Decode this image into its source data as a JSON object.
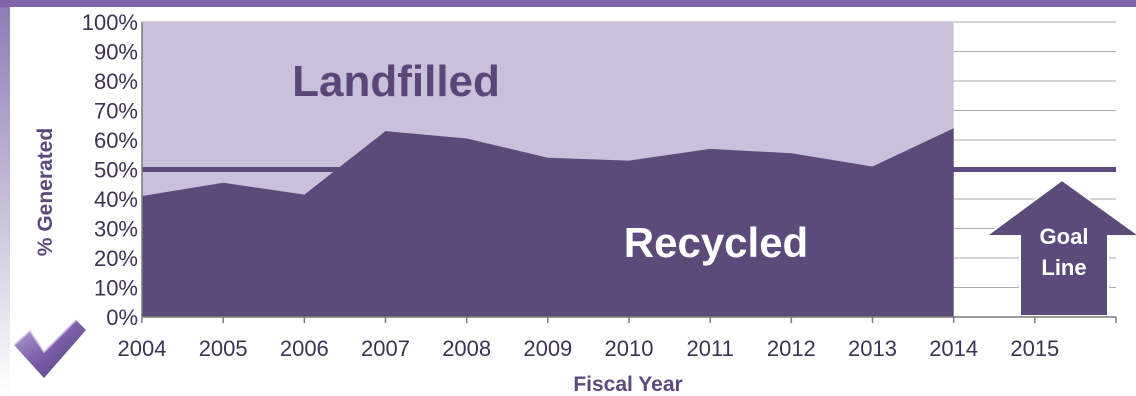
{
  "chart_data": {
    "type": "area",
    "title": "",
    "xlabel": "Fiscal Year",
    "ylabel": "% Generated",
    "x_ticks": [
      "2004",
      "2005",
      "2006",
      "2007",
      "2008",
      "2009",
      "2010",
      "2011",
      "2012",
      "2013",
      "2014",
      "2015"
    ],
    "y_ticks": [
      "0%",
      "10%",
      "20%",
      "30%",
      "40%",
      "50%",
      "60%",
      "70%",
      "80%",
      "90%",
      "100%"
    ],
    "xlim": [
      2004,
      2016
    ],
    "ylim": [
      0,
      100
    ],
    "grid": "horizontal",
    "series": [
      {
        "name": "Recycled",
        "x": [
          2004,
          2005,
          2006,
          2007,
          2008,
          2009,
          2010,
          2011,
          2012,
          2013,
          2014
        ],
        "values": [
          41,
          45.5,
          41.5,
          63,
          60.5,
          54,
          53,
          57,
          55.5,
          51,
          64
        ],
        "color": "#5c4a7a"
      },
      {
        "name": "Landfilled",
        "x": [
          2004,
          2005,
          2006,
          2007,
          2008,
          2009,
          2010,
          2011,
          2012,
          2013,
          2014
        ],
        "values": [
          59,
          54.5,
          58.5,
          37,
          39.5,
          46,
          47,
          43,
          44.5,
          49,
          36
        ],
        "color": "#cbc0dc"
      }
    ],
    "goal_line": {
      "value": 50,
      "label_line1": "Goal",
      "label_line2": "Line",
      "color": "#5c4a7a"
    }
  },
  "colors": {
    "top_bar": "#8066a8",
    "left_edge": "#9585b8",
    "grid": "#aaaaaa",
    "axis": "#7a7a7a",
    "checkmark": "#7b5ea8"
  },
  "icons": {
    "badge": "checkmark-icon"
  }
}
